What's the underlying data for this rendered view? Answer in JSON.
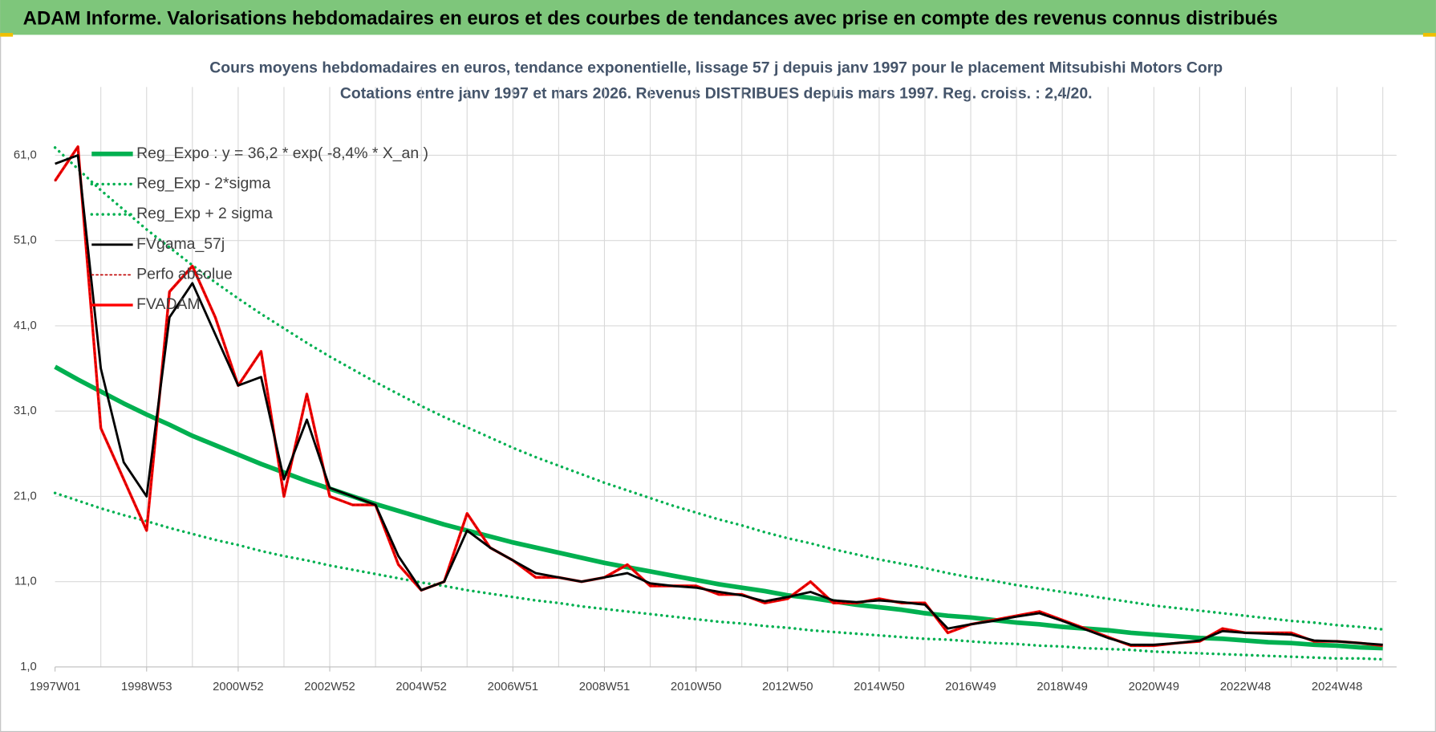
{
  "header": {
    "title": "ADAM Informe. Valorisations hebdomadaires en euros et des courbes de tendances avec prise en compte des revenus connus distribués"
  },
  "chart_data": {
    "type": "line",
    "title": "Cours moyens hebdomadaires en euros, tendance exponentielle, lissage 57 j depuis janv 1997 pour le placement Mitsubishi Motors Corp",
    "subtitle": "Cotations entre janv 1997 et mars 2026. Revenus DISTRIBUES depuis mars 1997. Reg. croiss. : 2,4/20.",
    "categories": [
      "1997W01",
      null,
      null,
      null,
      "1998W53",
      null,
      null,
      null,
      "2000W52",
      null,
      null,
      null,
      "2002W52",
      null,
      null,
      null,
      "2004W52",
      null,
      null,
      null,
      "2006W51",
      null,
      null,
      null,
      "2008W51",
      null,
      null,
      null,
      "2010W50",
      null,
      null,
      null,
      "2012W50",
      null,
      null,
      null,
      "2014W50",
      null,
      null,
      null,
      "2016W49",
      null,
      null,
      null,
      "2018W49",
      null,
      null,
      null,
      "2020W49",
      null,
      null,
      null,
      "2022W48",
      null,
      null,
      null,
      "2024W48",
      null,
      null
    ],
    "ylim": [
      1,
      69
    ],
    "yticks": [
      {
        "value": 1,
        "label": "1,0"
      },
      {
        "value": 11,
        "label": "11,0"
      },
      {
        "value": 21,
        "label": "21,0"
      },
      {
        "value": 31,
        "label": "31,0"
      },
      {
        "value": 41,
        "label": "41,0"
      },
      {
        "value": 51,
        "label": "51,0"
      },
      {
        "value": 61,
        "label": "61,0"
      }
    ],
    "grid": true,
    "legend": "upper left",
    "series": [
      {
        "name": "Reg_Expo : y = 36,2 * exp( -8,4% *  X_an )",
        "color": "#00b050",
        "style": "solid",
        "values": [
          36.2,
          34.7,
          33.3,
          31.9,
          30.6,
          29.4,
          28.1,
          27.0,
          25.9,
          24.8,
          23.8,
          22.8,
          21.9,
          21.0,
          20.1,
          19.3,
          18.5,
          17.7,
          17.0,
          16.3,
          15.6,
          15.0,
          14.4,
          13.8,
          13.2,
          12.7,
          12.2,
          11.7,
          11.2,
          10.7,
          10.3,
          9.9,
          9.4,
          9.1,
          8.7,
          8.3,
          8.0,
          7.7,
          7.3,
          7.0,
          6.8,
          6.5,
          6.2,
          6.0,
          5.7,
          5.5,
          5.3,
          5.0,
          4.8,
          4.6,
          4.4,
          4.3,
          4.1,
          3.9,
          3.8,
          3.6,
          3.5,
          3.3,
          3.2
        ]
      },
      {
        "name": "Reg_Exp - 2*sigma",
        "color": "#00b050",
        "style": "dotted",
        "values": [
          21.4,
          20.5,
          19.6,
          18.8,
          18.1,
          17.3,
          16.6,
          15.9,
          15.3,
          14.6,
          14.0,
          13.5,
          12.9,
          12.4,
          11.9,
          11.4,
          10.9,
          10.5,
          10.0,
          9.6,
          9.2,
          8.8,
          8.5,
          8.1,
          7.8,
          7.5,
          7.2,
          6.9,
          6.6,
          6.3,
          6.1,
          5.8,
          5.6,
          5.3,
          5.1,
          4.9,
          4.7,
          4.5,
          4.3,
          4.2,
          4.0,
          3.8,
          3.7,
          3.5,
          3.4,
          3.2,
          3.1,
          3.0,
          2.8,
          2.7,
          2.6,
          2.5,
          2.4,
          2.3,
          2.2,
          2.1,
          2.0,
          2.0,
          1.9
        ]
      },
      {
        "name": "Reg_Exp + 2 sigma",
        "color": "#00b050",
        "style": "dotted",
        "values": [
          61.9,
          59.4,
          56.9,
          54.6,
          52.3,
          50.2,
          48.1,
          46.1,
          44.2,
          42.4,
          40.7,
          39.0,
          37.4,
          35.9,
          34.4,
          33.0,
          31.6,
          30.3,
          29.1,
          27.9,
          26.7,
          25.6,
          24.6,
          23.6,
          22.6,
          21.7,
          20.8,
          19.9,
          19.1,
          18.3,
          17.6,
          16.8,
          16.1,
          15.5,
          14.8,
          14.2,
          13.6,
          13.1,
          12.6,
          12.0,
          11.5,
          11.1,
          10.6,
          10.2,
          9.8,
          9.4,
          9.0,
          8.6,
          8.2,
          7.9,
          7.6,
          7.3,
          7.0,
          6.7,
          6.4,
          6.2,
          5.9,
          5.7,
          5.4
        ]
      },
      {
        "name": "FVgama_57j",
        "color": "#000000",
        "style": "solid",
        "values": [
          60,
          61,
          36,
          25,
          21,
          42,
          46,
          40,
          34,
          35,
          23,
          30,
          22,
          21,
          20,
          14,
          10,
          11,
          17,
          15,
          13.5,
          12,
          11.5,
          11,
          11.5,
          12,
          10.8,
          10.5,
          10.3,
          9.8,
          9.4,
          8.7,
          9.2,
          9.8,
          8.8,
          8.6,
          8.8,
          8.6,
          8.3,
          5.5,
          6.0,
          6.4,
          6.9,
          7.3,
          6.4,
          5.4,
          4.4,
          3.6,
          3.6,
          3.8,
          4.1,
          5.2,
          5.0,
          4.9,
          4.8,
          4.1,
          4.0,
          3.8,
          3.6
        ]
      },
      {
        "name": "Perfo absolue",
        "color": "#c00000",
        "style": "dotted",
        "values": [
          58,
          62,
          29,
          23,
          17,
          45,
          48,
          42,
          34,
          38,
          21,
          33,
          21,
          20,
          20,
          13,
          10,
          11,
          19,
          15,
          13.5,
          11.5,
          11.5,
          11,
          11.5,
          13,
          10.5,
          10.5,
          10.5,
          9.5,
          9.5,
          8.5,
          9,
          11,
          8.5,
          8.5,
          9,
          8.5,
          8.5,
          5,
          6,
          6.5,
          7,
          7.5,
          6.5,
          5.5,
          4.5,
          3.5,
          3.5,
          3.8,
          4,
          5.5,
          5,
          5,
          5,
          4,
          4,
          3.8,
          3.5
        ]
      },
      {
        "name": "FVADAM",
        "color": "#ff0000",
        "style": "solid",
        "values": [
          58,
          62,
          29,
          23,
          17,
          45,
          48,
          42,
          34,
          38,
          21,
          33,
          21,
          20,
          20,
          13,
          10,
          11,
          19,
          15,
          13.5,
          11.5,
          11.5,
          11,
          11.5,
          13,
          10.5,
          10.5,
          10.5,
          9.5,
          9.5,
          8.5,
          9,
          11,
          8.5,
          8.5,
          9,
          8.5,
          8.5,
          5,
          6,
          6.5,
          7,
          7.5,
          6.5,
          5.5,
          4.5,
          3.5,
          3.5,
          3.8,
          4,
          5.5,
          5,
          5,
          5,
          4,
          4,
          3.8,
          3.5
        ]
      }
    ]
  }
}
